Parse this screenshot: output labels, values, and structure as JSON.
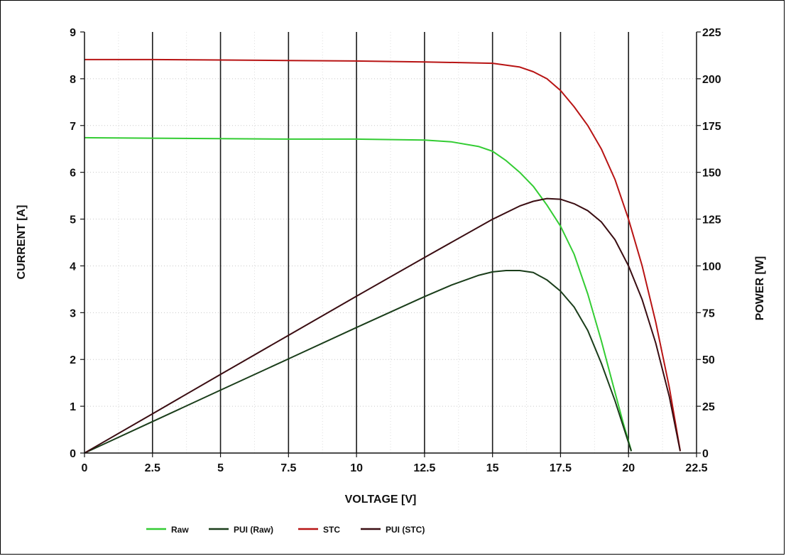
{
  "chart_data": {
    "type": "line",
    "xlabel": "VOLTAGE [V]",
    "ylabel": "CURRENT [A]",
    "y2label": "POWER [W]",
    "xlim": [
      0,
      22.5
    ],
    "ylim": [
      0,
      9
    ],
    "y2lim": [
      0,
      225
    ],
    "x_ticks": [
      "0",
      "2.5",
      "5",
      "7.5",
      "10",
      "12.5",
      "15",
      "17.5",
      "20",
      "22.5"
    ],
    "y_ticks": [
      "0",
      "1",
      "2",
      "3",
      "4",
      "5",
      "6",
      "7",
      "8",
      "9"
    ],
    "y2_ticks": [
      "0",
      "25",
      "50",
      "75",
      "100",
      "125",
      "150",
      "175",
      "200",
      "225"
    ],
    "grid": true,
    "legend_position": "bottom",
    "series": [
      {
        "name": "Raw",
        "axis": "current",
        "color": "#33cc33",
        "x": [
          0,
          2.5,
          5,
          7.5,
          10,
          12.5,
          13.5,
          14.5,
          15,
          15.5,
          16,
          16.5,
          17,
          17.5,
          18,
          18.5,
          19,
          19.5,
          19.8,
          20.1
        ],
        "y": [
          6.74,
          6.73,
          6.72,
          6.71,
          6.71,
          6.69,
          6.65,
          6.55,
          6.45,
          6.25,
          6.0,
          5.7,
          5.3,
          4.85,
          4.25,
          3.4,
          2.4,
          1.3,
          0.65,
          0.05
        ]
      },
      {
        "name": "PUI (Raw)",
        "axis": "power",
        "color": "#1a3d1a",
        "x": [
          0,
          2.5,
          5,
          7.5,
          10,
          12.5,
          13.5,
          14.5,
          15,
          15.5,
          16,
          16.5,
          17,
          17.5,
          18,
          18.5,
          19,
          19.5,
          20.1
        ],
        "y": [
          0,
          16.8,
          33.6,
          50.3,
          67.1,
          83.6,
          89.8,
          95.0,
          96.8,
          97.5,
          97.5,
          96.5,
          92.5,
          86.5,
          78.0,
          65.5,
          48.0,
          28.0,
          1.0
        ]
      },
      {
        "name": "STC",
        "axis": "current",
        "color": "#b81414",
        "x": [
          0,
          2.5,
          5,
          7.5,
          10,
          12.5,
          15,
          16,
          16.5,
          17,
          17.5,
          18,
          18.5,
          19,
          19.5,
          20,
          20.5,
          21,
          21.5,
          21.9
        ],
        "y": [
          8.41,
          8.41,
          8.4,
          8.39,
          8.38,
          8.36,
          8.33,
          8.25,
          8.15,
          8.0,
          7.75,
          7.4,
          7.0,
          6.5,
          5.85,
          5.0,
          4.0,
          2.8,
          1.4,
          0.05
        ]
      },
      {
        "name": "PUI (STC)",
        "axis": "power",
        "color": "#3a0d12",
        "x": [
          0,
          2.5,
          5,
          7.5,
          10,
          12.5,
          15,
          16,
          16.5,
          17,
          17.5,
          18,
          18.5,
          19,
          19.5,
          20,
          20.5,
          21,
          21.5,
          21.9
        ],
        "y": [
          0,
          21.0,
          42.0,
          62.9,
          83.8,
          104.5,
          124.9,
          132.0,
          134.5,
          136.0,
          135.6,
          133.2,
          129.5,
          123.5,
          114.0,
          100.0,
          82.0,
          58.8,
          30.1,
          1.0
        ]
      }
    ]
  }
}
